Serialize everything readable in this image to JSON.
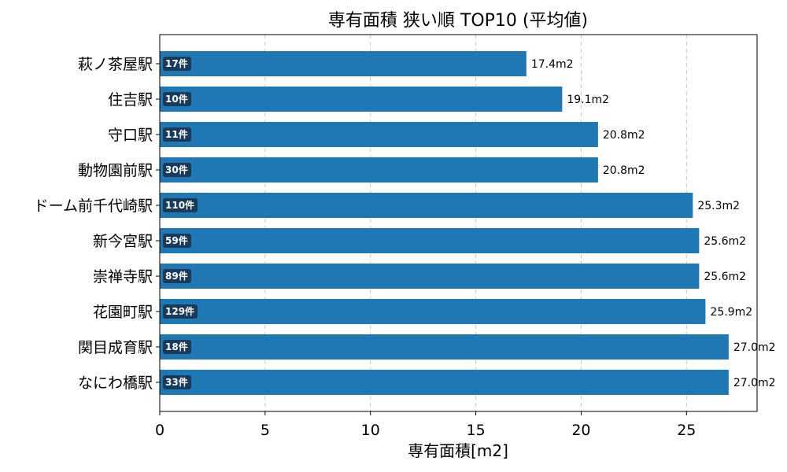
{
  "chart_data": {
    "type": "bar",
    "orientation": "horizontal",
    "title": "専有面積 狭い順 TOP10 (平均値)",
    "xlabel": "専有面積[m2]",
    "ylabel": "",
    "xlim": [
      0,
      28.35
    ],
    "xticks": [
      "0",
      "5",
      "10",
      "15",
      "20",
      "25"
    ],
    "grid": "x-dashed",
    "bar_color": "#1f77b4",
    "badge_color": "#1a3a5a",
    "categories": [
      "萩ノ茶屋駅",
      "住吉駅",
      "守口駅",
      "動物園前駅",
      "ドーム前千代崎駅",
      "新今宮駅",
      "崇禅寺駅",
      "花園町駅",
      "関目成育駅",
      "なにわ橋駅"
    ],
    "values": [
      17.4,
      19.1,
      20.8,
      20.8,
      25.3,
      25.6,
      25.6,
      25.9,
      27.0,
      27.0
    ],
    "value_labels": [
      "17.4m2",
      "19.1m2",
      "20.8m2",
      "20.8m2",
      "25.3m2",
      "25.6m2",
      "25.6m2",
      "25.9m2",
      "27.0m2",
      "27.0m2"
    ],
    "counts": [
      "17件",
      "10件",
      "11件",
      "30件",
      "110件",
      "59件",
      "89件",
      "129件",
      "18件",
      "33件"
    ]
  }
}
